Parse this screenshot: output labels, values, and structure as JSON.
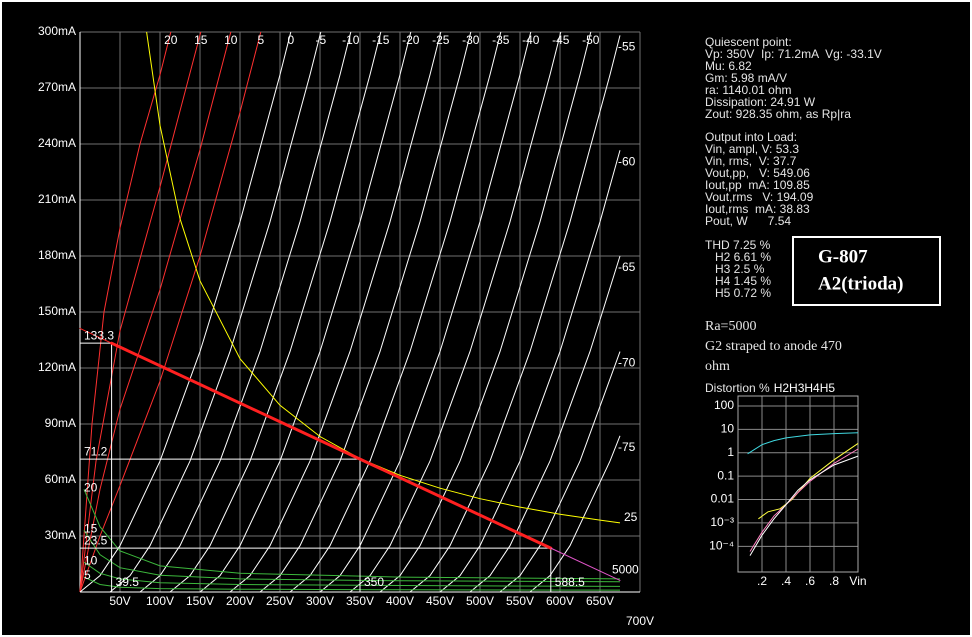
{
  "chart_data": [
    {
      "type": "line",
      "grid": true,
      "xlim": [
        0,
        700
      ],
      "ylim": [
        0,
        300
      ],
      "xticks": [
        {
          "value": 50,
          "label": "50V"
        },
        {
          "value": 100,
          "label": "100V"
        },
        {
          "value": 150,
          "label": "150V"
        },
        {
          "value": 200,
          "label": "200V"
        },
        {
          "value": 250,
          "label": "250V"
        },
        {
          "value": 300,
          "label": "300V"
        },
        {
          "value": 350,
          "label": "350V"
        },
        {
          "value": 400,
          "label": "400V"
        },
        {
          "value": 450,
          "label": "450V"
        },
        {
          "value": 500,
          "label": "500V"
        },
        {
          "value": 550,
          "label": "550V"
        },
        {
          "value": 600,
          "label": "600V"
        },
        {
          "value": 650,
          "label": "650V"
        },
        {
          "value": 700,
          "label": "700V"
        }
      ],
      "yticks": [
        {
          "value": 30,
          "label": "30mA"
        },
        {
          "value": 60,
          "label": "60mA"
        },
        {
          "value": 90,
          "label": "90mA"
        },
        {
          "value": 120,
          "label": "120mA"
        },
        {
          "value": 150,
          "label": "150mA"
        },
        {
          "value": 180,
          "label": "180mA"
        },
        {
          "value": 210,
          "label": "210mA"
        },
        {
          "value": 240,
          "label": "240mA"
        },
        {
          "value": 270,
          "label": "270mA"
        },
        {
          "value": 300,
          "label": "300mA"
        }
      ],
      "series": [
        {
          "name": "20",
          "color": "#ff3030",
          "x": [
            0,
            15,
            30,
            50,
            75,
            100,
            113.5
          ],
          "values": [
            0,
            90,
            150,
            195,
            240,
            277,
            300
          ]
        },
        {
          "name": "15",
          "color": "#ff3030",
          "x": [
            0,
            20,
            50,
            100,
            151
          ],
          "values": [
            0,
            70,
            140,
            217,
            300
          ]
        },
        {
          "name": "10",
          "color": "#ff3030",
          "x": [
            0,
            25,
            50,
            100,
            150,
            188.5
          ],
          "values": [
            0,
            55,
            98,
            162,
            237,
            300
          ]
        },
        {
          "name": "5",
          "color": "#ff3030",
          "x": [
            0,
            25,
            50,
            100,
            150,
            200,
            226
          ],
          "values": [
            0,
            30,
            57,
            113,
            180,
            257,
            300
          ]
        },
        {
          "name": "0",
          "color": "#ffffff",
          "x": [
            0,
            25,
            50,
            100,
            150,
            200,
            250,
            263.5
          ],
          "values": [
            0,
            8.8,
            24.8,
            70.1,
            128.8,
            198.3,
            277.1,
            300
          ]
        },
        {
          "name": "-5",
          "color": "#ffffff",
          "x": [
            37.5,
            62.5,
            87.5,
            137.5,
            187.5,
            237.5,
            287.5,
            301
          ],
          "values": [
            0,
            8.8,
            24.8,
            70.1,
            128.8,
            198.3,
            277.1,
            300
          ]
        },
        {
          "name": "-10",
          "color": "#ffffff",
          "x": [
            75,
            100,
            125,
            175,
            225,
            275,
            325,
            338.5
          ],
          "values": [
            0,
            8.8,
            24.8,
            70.1,
            128.8,
            198.3,
            277.1,
            300
          ]
        },
        {
          "name": "-15",
          "color": "#ffffff",
          "x": [
            112.5,
            137.5,
            162.5,
            212.5,
            262.5,
            312.5,
            362.5,
            376
          ],
          "values": [
            0,
            8.8,
            24.8,
            70.1,
            128.8,
            198.3,
            277.1,
            300
          ]
        },
        {
          "name": "-20",
          "color": "#ffffff",
          "x": [
            150,
            175,
            200,
            250,
            300,
            350,
            400,
            413.5
          ],
          "values": [
            0,
            8.8,
            24.8,
            70.1,
            128.8,
            198.3,
            277.1,
            300
          ]
        },
        {
          "name": "-25",
          "color": "#ffffff",
          "x": [
            187.5,
            212.5,
            237.5,
            287.5,
            337.5,
            387.5,
            437.5,
            451
          ],
          "values": [
            0,
            8.8,
            24.8,
            70.1,
            128.8,
            198.3,
            277.1,
            300
          ]
        },
        {
          "name": "-30",
          "color": "#ffffff",
          "x": [
            225,
            250,
            275,
            325,
            375,
            425,
            475,
            488.5
          ],
          "values": [
            0,
            8.8,
            24.8,
            70.1,
            128.8,
            198.3,
            277.1,
            300
          ]
        },
        {
          "name": "-35",
          "color": "#ffffff",
          "x": [
            262.5,
            287.5,
            312.5,
            362.5,
            412.5,
            462.5,
            512.5,
            526
          ],
          "values": [
            0,
            8.8,
            24.8,
            70.1,
            128.8,
            198.3,
            277.1,
            300
          ]
        },
        {
          "name": "-40",
          "color": "#ffffff",
          "x": [
            300,
            325,
            350,
            400,
            450,
            500,
            550,
            563.5
          ],
          "values": [
            0,
            8.8,
            24.8,
            70.1,
            128.8,
            198.3,
            277.1,
            300
          ]
        },
        {
          "name": "-45",
          "color": "#ffffff",
          "x": [
            337.5,
            362.5,
            387.5,
            437.5,
            487.5,
            537.5,
            587.5,
            601
          ],
          "values": [
            0,
            8.8,
            24.8,
            70.1,
            128.8,
            198.3,
            277.1,
            300
          ]
        },
        {
          "name": "-50",
          "color": "#ffffff",
          "x": [
            375,
            400,
            425,
            475,
            525,
            575,
            625,
            638.5
          ],
          "values": [
            0,
            8.8,
            24.8,
            70.1,
            128.8,
            198.3,
            277.1,
            300
          ]
        },
        {
          "name": "-55",
          "color": "#ffffff",
          "x": [
            412.5,
            437.5,
            462.5,
            512.5,
            562.5,
            612.5,
            662.5,
            675
          ],
          "values": [
            0,
            8.8,
            24.8,
            70.1,
            128.8,
            198.3,
            277.1,
            298.2
          ]
        },
        {
          "name": "-60",
          "color": "#ffffff",
          "x": [
            450,
            475,
            500,
            550,
            600,
            650,
            675
          ],
          "values": [
            0,
            8.8,
            24.8,
            70.1,
            128.8,
            198.3,
            236.7
          ]
        },
        {
          "name": "-65",
          "color": "#ffffff",
          "x": [
            487.5,
            512.5,
            537.5,
            587.5,
            637.5,
            675
          ],
          "values": [
            0,
            8.8,
            24.8,
            70.1,
            128.8,
            180
          ]
        },
        {
          "name": "-70",
          "color": "#ffffff",
          "x": [
            525,
            550,
            575,
            625,
            675
          ],
          "values": [
            0,
            8.8,
            24.8,
            70.1,
            128.8
          ]
        },
        {
          "name": "-75",
          "color": "#ffffff",
          "x": [
            562.5,
            587.5,
            612.5,
            662.5,
            675
          ],
          "values": [
            0,
            8.8,
            24.8,
            70.1,
            83.7
          ]
        }
      ],
      "grid_current": [
        {
          "name": "20",
          "color": "#3cb83c",
          "x": [
            5,
            25,
            50,
            100,
            200,
            400,
            675
          ],
          "values": [
            55,
            35,
            22,
            14,
            10,
            8,
            7
          ]
        },
        {
          "name": "15",
          "color": "#3cb83c",
          "x": [
            5,
            25,
            50,
            100,
            200,
            400,
            675
          ],
          "values": [
            33,
            20,
            13,
            9,
            7,
            6,
            5.5
          ]
        },
        {
          "name": "10",
          "color": "#3cb83c",
          "x": [
            5,
            25,
            50,
            100,
            200,
            400,
            675
          ],
          "values": [
            16,
            10,
            7,
            5,
            4,
            3.5,
            3
          ]
        },
        {
          "name": "5",
          "color": "#3cb83c",
          "x": [
            5,
            25,
            50,
            100,
            200,
            400,
            675
          ],
          "values": [
            8,
            4,
            2.5,
            1.8,
            1.5,
            1.2,
            1
          ]
        }
      ],
      "dissipation": {
        "name": "25",
        "color": "#ffff00",
        "x": [
          83.3,
          100,
          125,
          150,
          200,
          250,
          300,
          350,
          400,
          450,
          500,
          550,
          600,
          650,
          675
        ],
        "values": [
          300,
          250,
          200,
          166.7,
          125,
          100,
          83.3,
          71.4,
          62.5,
          55.6,
          50,
          45.5,
          41.7,
          38.5,
          37
        ]
      },
      "load_line": {
        "name": "5000",
        "color": "#ff2020",
        "extension_color": "#e055c8",
        "x": [
          0,
          39.5,
          350,
          588.5,
          675
        ],
        "values": [
          141.2,
          133.3,
          71.2,
          23.5,
          6.2
        ]
      }
    },
    {
      "type": "line",
      "title": "Distortion %",
      "legend": "top",
      "log_scale": true,
      "grid": true,
      "xlim": [
        0,
        1
      ],
      "ylim": [
        8e-06,
        266
      ],
      "xticks": [
        {
          "value": 0.2,
          "label": ".2"
        },
        {
          "value": 0.4,
          "label": ".4"
        },
        {
          "value": 0.6,
          "label": ".6"
        },
        {
          "value": 0.8,
          "label": ".8"
        }
      ],
      "xlabel": "Vin",
      "yticks": [
        100,
        10,
        1,
        0.1,
        0.01,
        {
          "value": 0.001,
          "label": "10⁻³"
        },
        {
          "value": 0.0001,
          "label": "10⁻⁴"
        }
      ],
      "series": [
        {
          "name": "H2",
          "color": "#40d8e0",
          "x": [
            0.08,
            0.2,
            0.3,
            0.4,
            0.6,
            0.8,
            1
          ],
          "values": [
            0.9,
            2.2,
            3.3,
            4.3,
            5.8,
            6.6,
            7.2
          ]
        },
        {
          "name": "H3",
          "color": "#ffff40",
          "x": [
            0.17,
            0.25,
            0.35,
            0.45,
            0.6,
            0.8,
            1
          ],
          "values": [
            0.0015,
            0.003,
            0.004,
            0.01,
            0.08,
            0.5,
            2.5
          ]
        },
        {
          "name": "H4",
          "color": "#ff80c0",
          "x": [
            0.1,
            0.2,
            0.3,
            0.4,
            0.5,
            0.6,
            0.8,
            1
          ],
          "values": [
            6e-05,
            0.0004,
            0.002,
            0.006,
            0.02,
            0.06,
            0.35,
            1.45
          ]
        },
        {
          "name": "H5",
          "color": "#ffffff",
          "x": [
            0.1,
            0.2,
            0.3,
            0.4,
            0.5,
            0.6,
            0.8,
            1
          ],
          "values": [
            4e-05,
            0.0003,
            0.0015,
            0.006,
            0.025,
            0.07,
            0.3,
            0.72
          ]
        }
      ]
    }
  ],
  "panel": {
    "quiescent": [
      "Quiescent point:",
      "Vp: 350V  Ip: 71.2mA  Vg: -33.1V",
      "Mu: 6.82",
      "Gm: 5.98 mA/V",
      "ra: 1140.01 ohm",
      "Dissipation: 24.91 W",
      "Zout: 928.35 ohm, as Rp|ra"
    ],
    "output": [
      "Output into Load:",
      "Vin, ampl, V: 53.3",
      "Vin, rms,  V: 37.7",
      "Vout,pp,   V: 549.06",
      "Iout,pp  mA: 109.85",
      "Vout,rms   V: 194.09",
      "Iout,rms  mA: 38.83",
      "Pout, W      7.54"
    ],
    "harmonics": [
      "THD 7.25 %",
      "H2 6.61 %",
      "H3 2.5 %",
      "H4 1.45 %",
      "H5 0.72 %"
    ],
    "tube": [
      "G-807",
      "A2(trioda)"
    ],
    "notes": [
      "Ra=5000",
      "G2 straped to anode 470",
      "ohm"
    ]
  }
}
